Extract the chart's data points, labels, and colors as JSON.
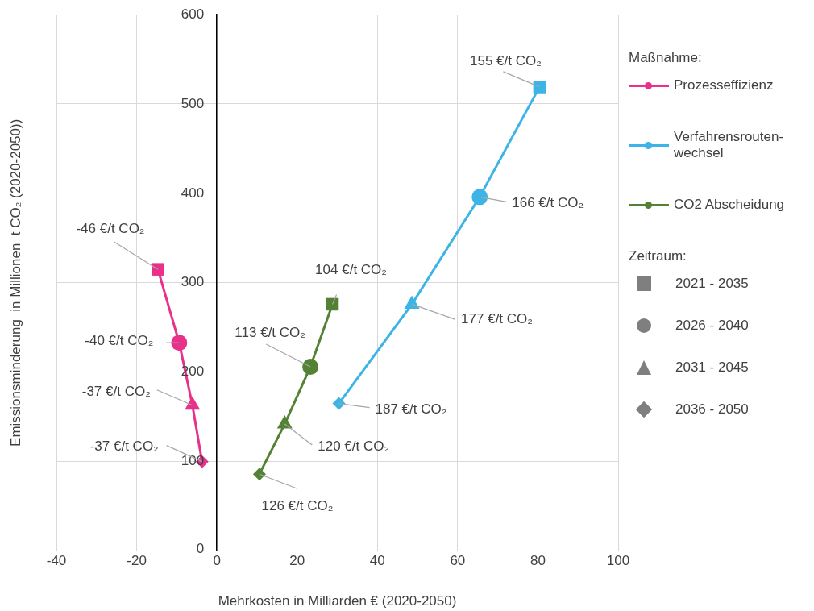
{
  "chart_data": {
    "type": "line",
    "xlabel": "Mehrkosten in Milliarden € (2020-2050)",
    "ylabel": "Emissionsminderung  in Millionen  t CO₂ (2020-2050))",
    "legend_title": "Maßnahme:",
    "legend": "right",
    "grid": true,
    "marker": "none",
    "xlim": [
      -40,
      100
    ],
    "xticks": [
      -40,
      -20,
      0,
      20,
      40,
      60,
      80,
      100
    ],
    "ylim": [
      0,
      600
    ],
    "yticks": [
      0,
      100,
      200,
      300,
      400,
      500,
      600
    ],
    "series": [
      {
        "name": "Prozesseffizienz",
        "color": "#e8318a",
        "x": [
          -14.7,
          -9.4,
          -6.1,
          -3.7
        ],
        "values": [
          315,
          233,
          163,
          100
        ]
      },
      {
        "name": "Verfahrensrouten-wechsel",
        "color": "#3cb4e5",
        "x": [
          80.4,
          65.5,
          48.6,
          30.4
        ],
        "values": [
          519,
          396,
          276,
          165
        ]
      },
      {
        "name": "CO2 Abscheidung",
        "color": "#548235",
        "x": [
          28.8,
          23.3,
          16.9,
          10.6
        ],
        "values": [
          276,
          206,
          142,
          86
        ]
      },
      {
        "type": "scatter",
        "marker": "square",
        "colors": [
          "#e8318a",
          "#3cb4e5",
          "#548235"
        ],
        "x": [
          -14.7,
          80.4,
          28.8
        ],
        "values": [
          315,
          519,
          276
        ]
      },
      {
        "type": "scatter",
        "marker": "circle",
        "colors": [
          "#e8318a",
          "#3cb4e5",
          "#548235"
        ],
        "x": [
          -9.4,
          65.5,
          23.3
        ],
        "values": [
          233,
          396,
          206
        ]
      },
      {
        "type": "scatter",
        "marker": "triangle",
        "colors": [
          "#e8318a",
          "#3cb4e5",
          "#548235"
        ],
        "x": [
          -6.1,
          48.6,
          16.9
        ],
        "values": [
          163,
          276,
          142
        ]
      },
      {
        "type": "scatter",
        "marker": "diamond",
        "colors": [
          "#e8318a",
          "#3cb4e5",
          "#548235"
        ],
        "x": [
          -3.7,
          30.4,
          10.6
        ],
        "values": [
          100,
          165,
          86
        ]
      }
    ],
    "annotations": [
      {
        "text": "-46 €/t CO₂",
        "x": -14.7,
        "y": 315
      },
      {
        "text": "-40 €/t CO₂",
        "x": -9.4,
        "y": 233
      },
      {
        "text": "-37 €/t CO₂",
        "x": -6.1,
        "y": 163
      },
      {
        "text": "-37 €/t CO₂",
        "x": -3.7,
        "y": 100
      },
      {
        "text": "155 €/t CO₂",
        "x": 80.4,
        "y": 519
      },
      {
        "text": "166 €/t CO₂",
        "x": 65.5,
        "y": 396
      },
      {
        "text": "177 €/t CO₂",
        "x": 48.6,
        "y": 276
      },
      {
        "text": "187 €/t CO₂",
        "x": 30.4,
        "y": 165
      },
      {
        "text": "104 €/t CO₂",
        "x": 28.8,
        "y": 276
      },
      {
        "text": "113 €/t CO₂",
        "x": 23.3,
        "y": 206
      },
      {
        "text": "120 €/t CO₂",
        "x": 16.9,
        "y": 142
      },
      {
        "text": "126 €/t CO₂",
        "x": 10.6,
        "y": 86
      },
      "Zeitraum:",
      "2021 - 2035",
      "2026 - 2040",
      "2031 - 2045",
      "2036 - 2050"
    ]
  }
}
